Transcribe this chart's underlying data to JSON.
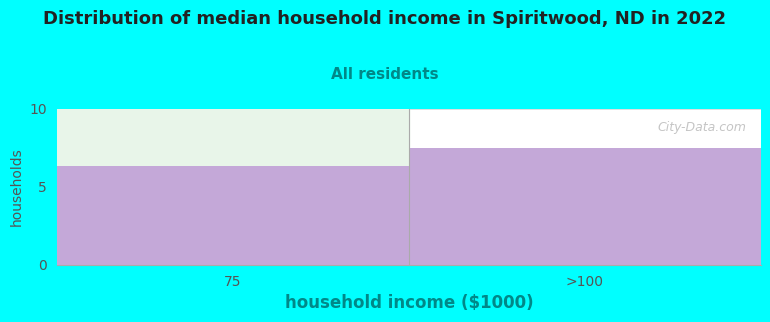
{
  "title": "Distribution of median household income in Spiritwood, ND in 2022",
  "subtitle": "All residents",
  "xlabel": "household income ($1000)",
  "ylabel": "households",
  "background_color": "#00FFFF",
  "plot_bg_color": "#FFFFFF",
  "bar_color": "#C4A8D8",
  "mint_color": "#E8F5E9",
  "categories": [
    "75",
    ">100"
  ],
  "values": [
    6.3,
    7.5
  ],
  "ylim": [
    0,
    10
  ],
  "yticks": [
    0,
    5,
    10
  ],
  "watermark": "City-Data.com",
  "title_fontsize": 13,
  "subtitle_fontsize": 11,
  "xlabel_fontsize": 12,
  "ylabel_fontsize": 10,
  "tick_fontsize": 10,
  "xlabel_color": "#008888",
  "subtitle_color": "#008888",
  "title_color": "#222222",
  "ylabel_color": "#555555",
  "tick_color": "#555555"
}
